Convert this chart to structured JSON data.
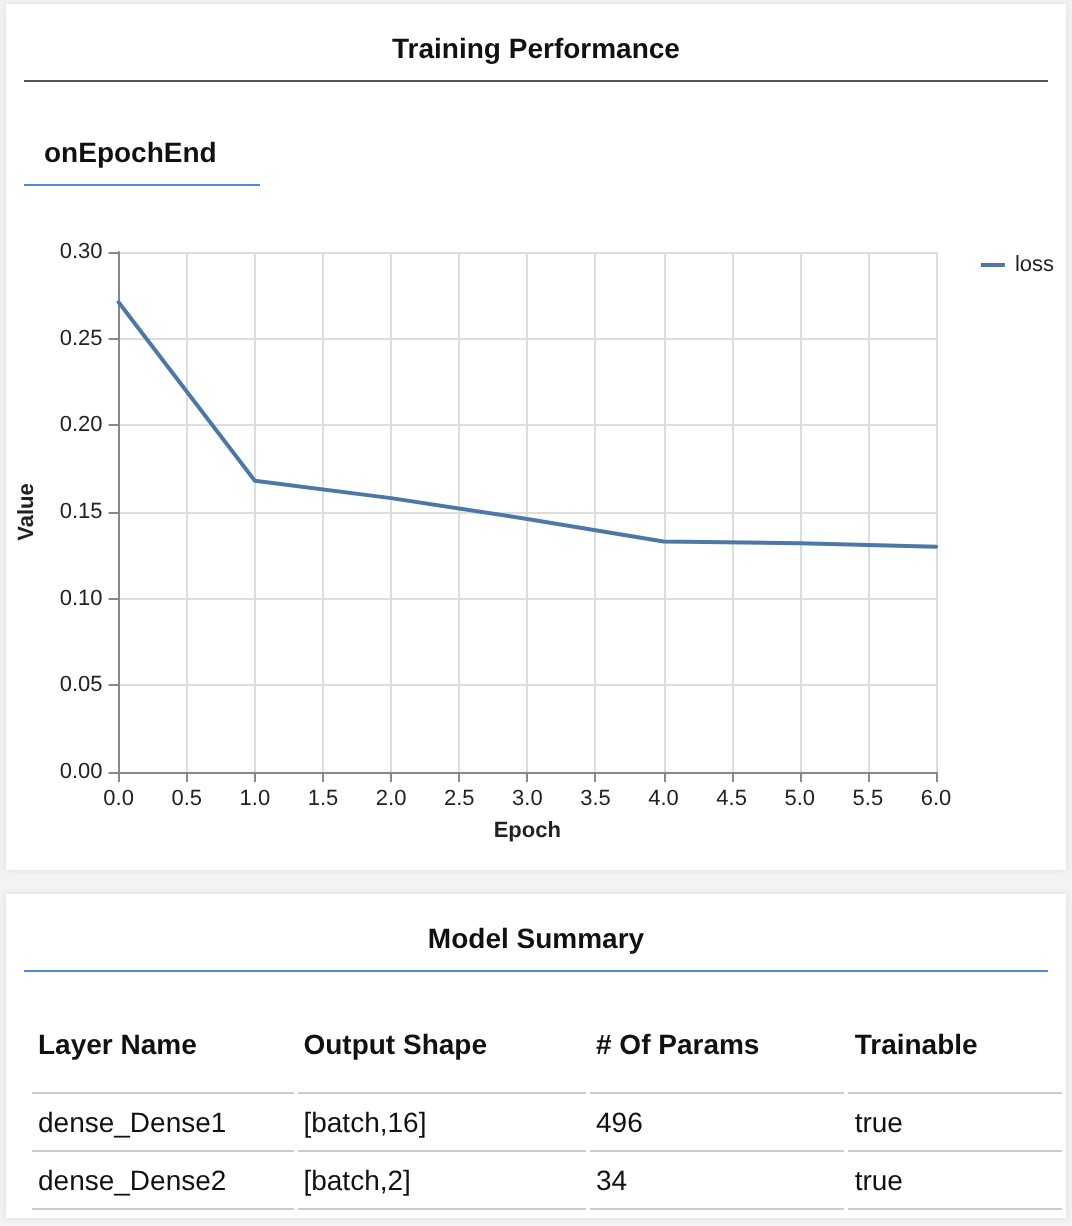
{
  "chart_data": [
    {
      "type": "line",
      "title": "Training Performance",
      "subtitle": "onEpochEnd",
      "xlabel": "Epoch",
      "ylabel": "Value",
      "x": [
        0,
        1,
        2,
        3,
        4,
        5,
        6
      ],
      "series": [
        {
          "name": "loss",
          "color": "#4c78a8",
          "values": [
            0.271,
            0.168,
            0.158,
            0.146,
            0.133,
            0.132,
            0.13
          ]
        }
      ],
      "xlim": [
        0,
        6
      ],
      "xticks": [
        {
          "value": 0,
          "label": "0.0"
        },
        0.5,
        {
          "value": 1,
          "label": "1.0"
        },
        1.5,
        {
          "value": 2,
          "label": "2.0"
        },
        2.5,
        {
          "value": 3,
          "label": "3.0"
        },
        3.5,
        {
          "value": 4,
          "label": "4.0"
        },
        4.5,
        {
          "value": 5,
          "label": "5.0"
        },
        5.5,
        {
          "value": 6,
          "label": "6.0"
        }
      ],
      "ylim": [
        0,
        0.3
      ],
      "yticks": [
        {
          "value": 0,
          "label": "0.00"
        },
        0.05,
        {
          "value": 0.1,
          "label": "0.10"
        },
        0.15,
        {
          "value": 0.2,
          "label": "0.20"
        },
        0.25,
        {
          "value": 0.3,
          "label": "0.30"
        }
      ],
      "grid": true,
      "legend": "top right",
      "marker": "none",
      "line_style": "solid"
    },
    {
      "type": "other",
      "title": "Model Summary",
      "annotations": [
        "Layer Name",
        "Output Shape",
        "# Of Params",
        "Trainable",
        "dense_Dense1",
        "[batch,16]",
        "496",
        "true",
        "dense_Dense2",
        "[batch,2]",
        "34",
        "true"
      ]
    }
  ]
}
